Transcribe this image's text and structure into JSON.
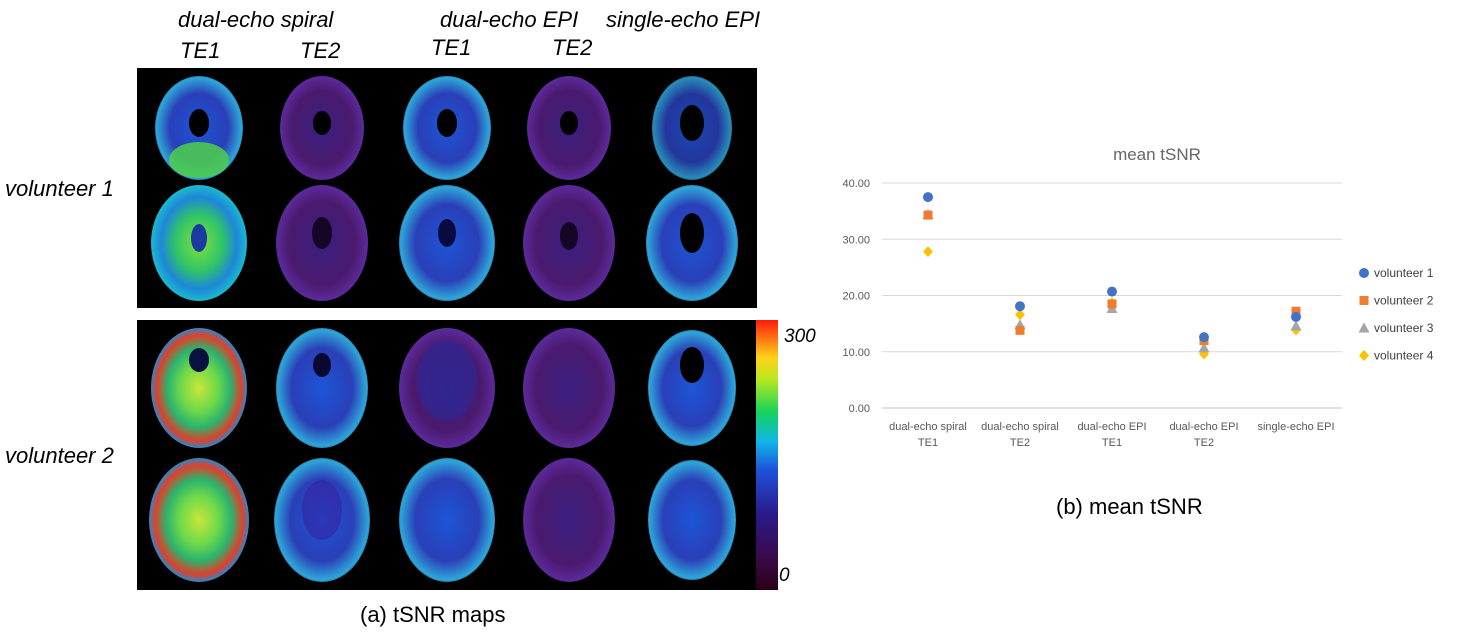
{
  "maps": {
    "col_groups": [
      "dual-echo spiral",
      "dual-echo EPI",
      "single-echo EPI"
    ],
    "echo_labels": [
      "TE1",
      "TE2",
      "TE1",
      "TE2"
    ],
    "rows": [
      "volunteer 1",
      "volunteer 2"
    ],
    "colorbar": {
      "max_label": "300",
      "min_label": "0"
    },
    "caption": "(a) tSNR maps"
  },
  "chart_data": {
    "type": "scatter",
    "title": "mean tSNR",
    "categories": [
      [
        "dual-echo spiral",
        "TE1"
      ],
      [
        "dual-echo spiral",
        "TE2"
      ],
      [
        "dual-echo EPI",
        "TE1"
      ],
      [
        "dual-echo EPI",
        "TE2"
      ],
      [
        "single-echo EPI"
      ]
    ],
    "y_ticks": [
      "40.00",
      "30.00",
      "20.00",
      "10.00",
      "0.00"
    ],
    "ylim": [
      0,
      40
    ],
    "grid": true,
    "legend_position": "right",
    "series": [
      {
        "name": "volunteer 1",
        "marker": "circle",
        "color": "#4472C4",
        "values": [
          37.5,
          18.1,
          20.7,
          12.6,
          16.2
        ]
      },
      {
        "name": "volunteer 2",
        "marker": "square",
        "color": "#ED7D31",
        "values": [
          34.3,
          13.8,
          18.5,
          12.0,
          17.2
        ]
      },
      {
        "name": "volunteer 3",
        "marker": "triangle",
        "color": "#A5A5A5",
        "values": [
          34.4,
          14.8,
          17.7,
          10.7,
          14.6
        ]
      },
      {
        "name": "volunteer 4",
        "marker": "diamond",
        "color": "#FFC000",
        "values": [
          27.8,
          16.6,
          18.7,
          9.6,
          13.9
        ]
      }
    ],
    "caption": "(b) mean tSNR"
  }
}
